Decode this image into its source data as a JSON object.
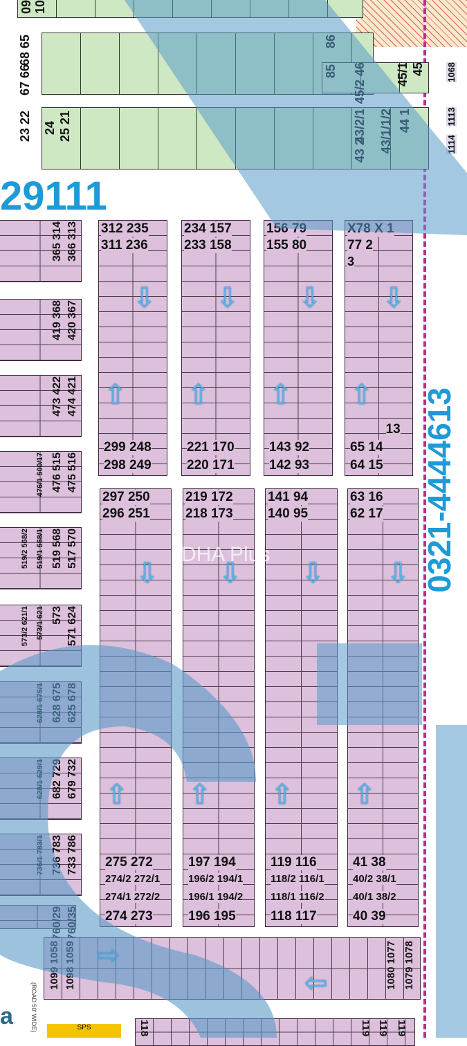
{
  "map_title_number": "29111",
  "phone": "0321-4444613",
  "watermark": "DHA Plus",
  "road_label": "(ROAD 50' WIDE)",
  "sps_label": "SPS",
  "partial_label": "a",
  "colors": {
    "plot_pink": "#dcc0dc",
    "plot_green": "#cfe8c4",
    "overlay_blue": "#5a9ac8",
    "accent_text": "#1e9ad6",
    "road_line": "#c02a8a"
  },
  "green_rows": [
    {
      "labels": [
        "09",
        "10"
      ]
    },
    {
      "labels": [
        "68 65",
        "67 66",
        "86",
        "85",
        "45/2 46",
        "45/1",
        "45"
      ]
    },
    {
      "labels": [
        "25 21",
        "24",
        "23 22",
        "43/2/1",
        "43/1/1/2",
        "43 2",
        "44 1"
      ]
    }
  ],
  "right_edge_labels": [
    "1068",
    "1113",
    "1114"
  ],
  "blocks": [
    {
      "top": [
        "312 235",
        "311 236"
      ],
      "bottom": [
        "299 248",
        "298 249"
      ]
    },
    {
      "top": [
        "234 157",
        "233 158"
      ],
      "bottom": [
        "221 170",
        "220 171"
      ]
    },
    {
      "top": [
        "156 79",
        "155 80"
      ],
      "bottom": [
        "143 92",
        "142 93"
      ]
    },
    {
      "top": [
        "X78 X 1",
        "77 2",
        "3"
      ],
      "bottom": [
        "13",
        "65 14",
        "64 15"
      ]
    },
    {
      "top": [
        "297 250",
        "296 251"
      ],
      "bottom": [
        "275 272",
        "274/2 272/1",
        "274/1 272/2",
        "274 273"
      ]
    },
    {
      "top": [
        "219 172",
        "218 173"
      ],
      "bottom": [
        "197 194",
        "196/2 194/1",
        "196/1 194/2",
        "196 195"
      ]
    },
    {
      "top": [
        "141 94",
        "140 95"
      ],
      "bottom": [
        "119 116",
        "118/2 116/1",
        "118/1 116/2",
        "118 117"
      ]
    },
    {
      "top": [
        "63 16",
        "62 17"
      ],
      "bottom": [
        "41 38",
        "40/2 38/1",
        "40/1 38/2",
        "40 39"
      ]
    }
  ],
  "left_blocks": [
    [
      "365 314",
      "366 313"
    ],
    [
      "419 368",
      "420 367"
    ],
    [
      "473 422",
      "474 421"
    ],
    [
      "476/1 500/17",
      "476 515",
      "475 516"
    ],
    [
      "519/2 568/2",
      "519/1 568/1",
      "519 568",
      "517 570"
    ],
    [
      "573/2 621/1",
      "573/1 621",
      "573",
      "571 624"
    ],
    [
      "628/1 675/1",
      "628 675",
      "625 678"
    ],
    [
      "628/1 629/1",
      "682 729",
      "679 732"
    ],
    [
      "736/1 783/1",
      "736 783",
      "733 786"
    ],
    [
      "760/29",
      "760/35"
    ]
  ],
  "bottom_row": {
    "labels": [
      "1099 1058",
      "1098 1059",
      "1080 1077",
      "1079 1078"
    ]
  },
  "lower_row_partial": [
    "118",
    "119",
    "119",
    "119"
  ]
}
